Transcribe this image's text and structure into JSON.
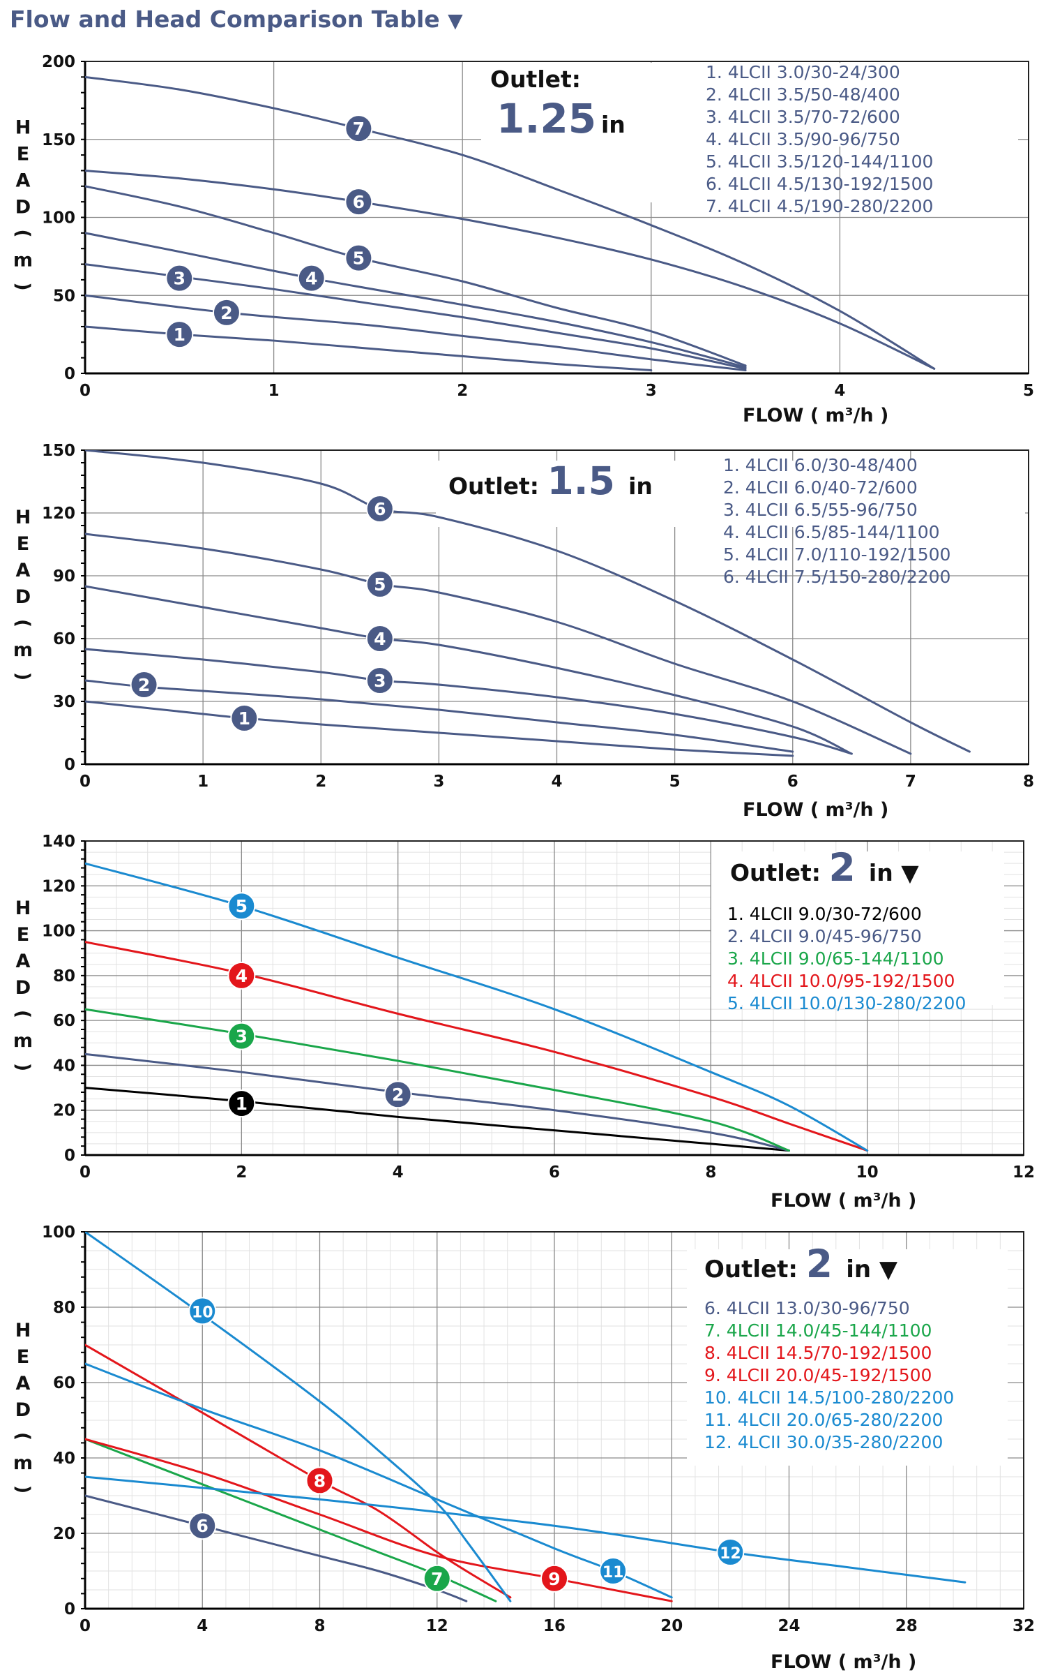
{
  "page": {
    "title": "Flow and Head Comparison Table",
    "title_marker": "▼",
    "ylabel_letters": [
      "H",
      "E",
      "A",
      "D",
      "(",
      "m",
      ")"
    ],
    "colors": {
      "navy": "#4a5a86",
      "black": "#000000",
      "green": "#1aa64a",
      "red": "#e3161b",
      "blue": "#1a8ad0"
    }
  },
  "chart_data": [
    {
      "type": "line",
      "title": "Outlet: 1.25 in",
      "outlet_label": "Outlet:",
      "outlet_size": "1.25",
      "outlet_unit": "in",
      "xlabel": "FLOW ( m³/h )",
      "ylabel": "HEAD (m)",
      "xlim": [
        0,
        5
      ],
      "ylim": [
        0,
        200
      ],
      "xticks": [
        0,
        1,
        2,
        3,
        4,
        5
      ],
      "yticks": [
        0,
        50,
        100,
        150,
        200
      ],
      "series": [
        {
          "id": "1",
          "name": "1.  4LCII 3.0/30-24/300",
          "color": "#4a5a86",
          "x": [
            0,
            0.5,
            1,
            1.5,
            2,
            2.5,
            3
          ],
          "y": [
            30,
            25,
            21,
            16,
            11,
            6,
            2
          ],
          "marker": [
            0.5,
            25
          ]
        },
        {
          "id": "2",
          "name": "2.  4LCII 3.5/50-48/400",
          "color": "#4a5a86",
          "x": [
            0,
            0.75,
            1.5,
            2,
            2.5,
            3,
            3.5
          ],
          "y": [
            50,
            39,
            31,
            24,
            17,
            9,
            2
          ],
          "marker": [
            0.75,
            39
          ]
        },
        {
          "id": "3",
          "name": "3.  4LCII 3.5/70-72/600",
          "color": "#4a5a86",
          "x": [
            0,
            0.5,
            1,
            1.5,
            2,
            2.5,
            3,
            3.5
          ],
          "y": [
            70,
            62,
            54,
            45,
            36,
            26,
            16,
            3
          ],
          "marker": [
            0.5,
            61
          ]
        },
        {
          "id": "4",
          "name": "4.  4LCII 3.5/90-96/750",
          "color": "#4a5a86",
          "x": [
            0,
            0.5,
            1.2,
            2,
            2.5,
            3,
            3.5
          ],
          "y": [
            90,
            78,
            61,
            44,
            33,
            20,
            4
          ],
          "marker": [
            1.2,
            61
          ]
        },
        {
          "id": "5",
          "name": "5.  4LCII 3.5/120-144/1100",
          "color": "#4a5a86",
          "x": [
            0,
            0.5,
            1,
            1.45,
            2,
            2.5,
            3,
            3.5
          ],
          "y": [
            120,
            107,
            90,
            74,
            59,
            42,
            27,
            5
          ],
          "marker": [
            1.45,
            74
          ]
        },
        {
          "id": "6",
          "name": "6.  4LCII 4.5/130-192/1500",
          "color": "#4a5a86",
          "x": [
            0,
            0.5,
            1,
            1.45,
            2,
            2.5,
            3,
            3.5,
            4,
            4.5
          ],
          "y": [
            130,
            125,
            118,
            110,
            99,
            87,
            73,
            55,
            32,
            3
          ],
          "marker": [
            1.45,
            110
          ]
        },
        {
          "id": "7",
          "name": "7.  4LCII 4.5/190-280/2200",
          "color": "#4a5a86",
          "x": [
            0,
            0.5,
            1,
            1.45,
            2,
            2.5,
            3,
            3.5,
            4,
            4.5
          ],
          "y": [
            190,
            182,
            170,
            157,
            140,
            118,
            95,
            70,
            40,
            3
          ],
          "marker": [
            1.45,
            157
          ]
        }
      ]
    },
    {
      "type": "line",
      "title": "Outlet: 1.5 in",
      "outlet_label": "Outlet:",
      "outlet_size": "1.5",
      "outlet_unit": "in",
      "xlabel": "FLOW ( m³/h )",
      "ylabel": "HEAD (m)",
      "xlim": [
        0,
        8
      ],
      "ylim": [
        0,
        150
      ],
      "xticks": [
        0,
        1,
        2,
        3,
        4,
        5,
        6,
        7,
        8
      ],
      "yticks": [
        0,
        30,
        60,
        90,
        120,
        150
      ],
      "series": [
        {
          "id": "1",
          "name": "1.  4LCII 6.0/30-48/400",
          "color": "#4a5a86",
          "x": [
            0,
            1,
            1.35,
            2,
            3,
            4,
            5,
            6
          ],
          "y": [
            30,
            24,
            22,
            19,
            15,
            11,
            7,
            4
          ],
          "marker": [
            1.35,
            22
          ]
        },
        {
          "id": "2",
          "name": "2.  4LCII 6.0/40-72/600",
          "color": "#4a5a86",
          "x": [
            0,
            0.5,
            1,
            2,
            3,
            4,
            5,
            6
          ],
          "y": [
            40,
            37,
            35,
            31,
            26,
            20,
            14,
            6
          ],
          "marker": [
            0.5,
            38
          ]
        },
        {
          "id": "3",
          "name": "3.  4LCII 6.5/55-96/750",
          "color": "#4a5a86",
          "x": [
            0,
            1,
            2,
            2.5,
            3,
            4,
            5,
            6,
            6.5
          ],
          "y": [
            55,
            50,
            44,
            40,
            38,
            32,
            24,
            13,
            5
          ],
          "marker": [
            2.5,
            40
          ]
        },
        {
          "id": "4",
          "name": "4.  4LCII 6.5/85-144/1100",
          "color": "#4a5a86",
          "x": [
            0,
            1,
            2,
            2.5,
            3,
            4,
            5,
            6,
            6.5
          ],
          "y": [
            85,
            75,
            65,
            60,
            57,
            46,
            33,
            18,
            5
          ],
          "marker": [
            2.5,
            60
          ]
        },
        {
          "id": "5",
          "name": "5.  4LCII 7.0/110-192/1500",
          "color": "#4a5a86",
          "x": [
            0,
            1,
            2,
            2.5,
            3,
            4,
            5,
            6,
            7
          ],
          "y": [
            110,
            103,
            93,
            86,
            82,
            68,
            48,
            30,
            5
          ],
          "marker": [
            2.5,
            86
          ]
        },
        {
          "id": "6",
          "name": "6.  4LCII 7.5/150-280/2200",
          "color": "#4a5a86",
          "x": [
            0,
            1,
            2,
            2.5,
            3,
            4,
            5,
            6,
            7,
            7.5
          ],
          "y": [
            150,
            144,
            134,
            122,
            118,
            102,
            78,
            50,
            20,
            6
          ],
          "marker": [
            2.5,
            122
          ]
        }
      ]
    },
    {
      "type": "line",
      "title": "Outlet: 2 in",
      "outlet_label": "Outlet:",
      "outlet_size": "2",
      "outlet_unit": "in",
      "outlet_marker": "▼",
      "xlabel": "FLOW ( m³/h )",
      "ylabel": "HEAD (m)",
      "xlim": [
        0,
        12
      ],
      "ylim": [
        0,
        140
      ],
      "xticks": [
        0,
        2,
        4,
        6,
        8,
        10,
        12
      ],
      "yticks": [
        0,
        20,
        40,
        60,
        80,
        100,
        120,
        140
      ],
      "series": [
        {
          "id": "1",
          "name": "1.  4LCII 9.0/30-72/600",
          "color": "#000000",
          "x": [
            0,
            2,
            4,
            6,
            8,
            9
          ],
          "y": [
            30,
            24,
            17,
            11,
            5,
            2
          ],
          "marker": [
            2,
            23
          ]
        },
        {
          "id": "2",
          "name": "2.  4LCII 9.0/45-96/750",
          "color": "#4a5a86",
          "x": [
            0,
            2,
            4,
            6,
            8,
            9
          ],
          "y": [
            45,
            37,
            28,
            20,
            10,
            2
          ],
          "marker": [
            4,
            27
          ]
        },
        {
          "id": "3",
          "name": "3.  4LCII 9.0/65-144/1100",
          "color": "#1aa64a",
          "x": [
            0,
            2,
            4,
            6,
            8,
            9
          ],
          "y": [
            65,
            54,
            42,
            29,
            15,
            2
          ],
          "marker": [
            2,
            53
          ]
        },
        {
          "id": "4",
          "name": "4.  4LCII 10.0/95-192/1500",
          "color": "#e3161b",
          "x": [
            0,
            2,
            4,
            6,
            8,
            9,
            10
          ],
          "y": [
            95,
            81,
            63,
            46,
            26,
            14,
            2
          ],
          "marker": [
            2,
            80
          ]
        },
        {
          "id": "5",
          "name": "5.  4LCII 10.0/130-280/2200",
          "color": "#1a8ad0",
          "x": [
            0,
            2,
            4,
            6,
            8,
            9,
            10
          ],
          "y": [
            130,
            111,
            88,
            65,
            37,
            22,
            2
          ],
          "marker": [
            2,
            111
          ]
        }
      ]
    },
    {
      "type": "line",
      "title": "Outlet: 2 in",
      "outlet_label": "Outlet:",
      "outlet_size": "2",
      "outlet_unit": "in",
      "outlet_marker": "▼",
      "xlabel": "FLOW ( m³/h )",
      "ylabel": "HEAD (m)",
      "xlim": [
        0,
        32
      ],
      "ylim": [
        0,
        100
      ],
      "xticks": [
        0,
        4,
        8,
        12,
        16,
        20,
        24,
        28,
        32
      ],
      "yticks": [
        0,
        20,
        40,
        60,
        80,
        100
      ],
      "series": [
        {
          "id": "6",
          "name": "6.  4LCII 13.0/30-96/750",
          "color": "#4a5a86",
          "x": [
            0,
            4,
            8,
            10,
            12,
            13
          ],
          "y": [
            30,
            22,
            14,
            10,
            5,
            2
          ],
          "marker": [
            4,
            22
          ]
        },
        {
          "id": "7",
          "name": "7.  4LCII 14.0/45-144/1100",
          "color": "#1aa64a",
          "x": [
            0,
            4,
            8,
            10,
            12,
            14
          ],
          "y": [
            45,
            33,
            21,
            15,
            9,
            2
          ],
          "marker": [
            12,
            8
          ]
        },
        {
          "id": "8",
          "name": "8.  4LCII 14.5/70-192/1500",
          "color": "#e3161b",
          "x": [
            0,
            4,
            8,
            10,
            12,
            13,
            14.5
          ],
          "y": [
            70,
            52,
            34,
            26,
            15,
            10,
            3
          ],
          "marker": [
            8,
            34
          ]
        },
        {
          "id": "9",
          "name": "9.  4LCII 20.0/45-192/1500",
          "color": "#e3161b",
          "x": [
            0,
            4,
            8,
            12,
            16,
            20
          ],
          "y": [
            45,
            36,
            25,
            14,
            8,
            2
          ],
          "marker": [
            16,
            8
          ]
        },
        {
          "id": "10",
          "name": "10.  4LCII 14.5/100-280/2200",
          "color": "#1a8ad0",
          "x": [
            0,
            4,
            8,
            10,
            12,
            13,
            14.5
          ],
          "y": [
            100,
            78,
            55,
            42,
            28,
            18,
            2
          ],
          "marker": [
            4,
            79
          ]
        },
        {
          "id": "11",
          "name": "11.  4LCII 20.0/65-280/2200",
          "color": "#1a8ad0",
          "x": [
            0,
            4,
            8,
            12,
            16,
            18,
            20
          ],
          "y": [
            65,
            53,
            42,
            29,
            16,
            10,
            3
          ],
          "marker": [
            18,
            10
          ]
        },
        {
          "id": "12",
          "name": "12.  4LCII 30.0/35-280/2200",
          "color": "#1a8ad0",
          "x": [
            0,
            8,
            16,
            22,
            26,
            30
          ],
          "y": [
            35,
            29,
            22,
            15,
            11,
            7
          ],
          "marker": [
            22,
            15
          ]
        }
      ]
    }
  ]
}
